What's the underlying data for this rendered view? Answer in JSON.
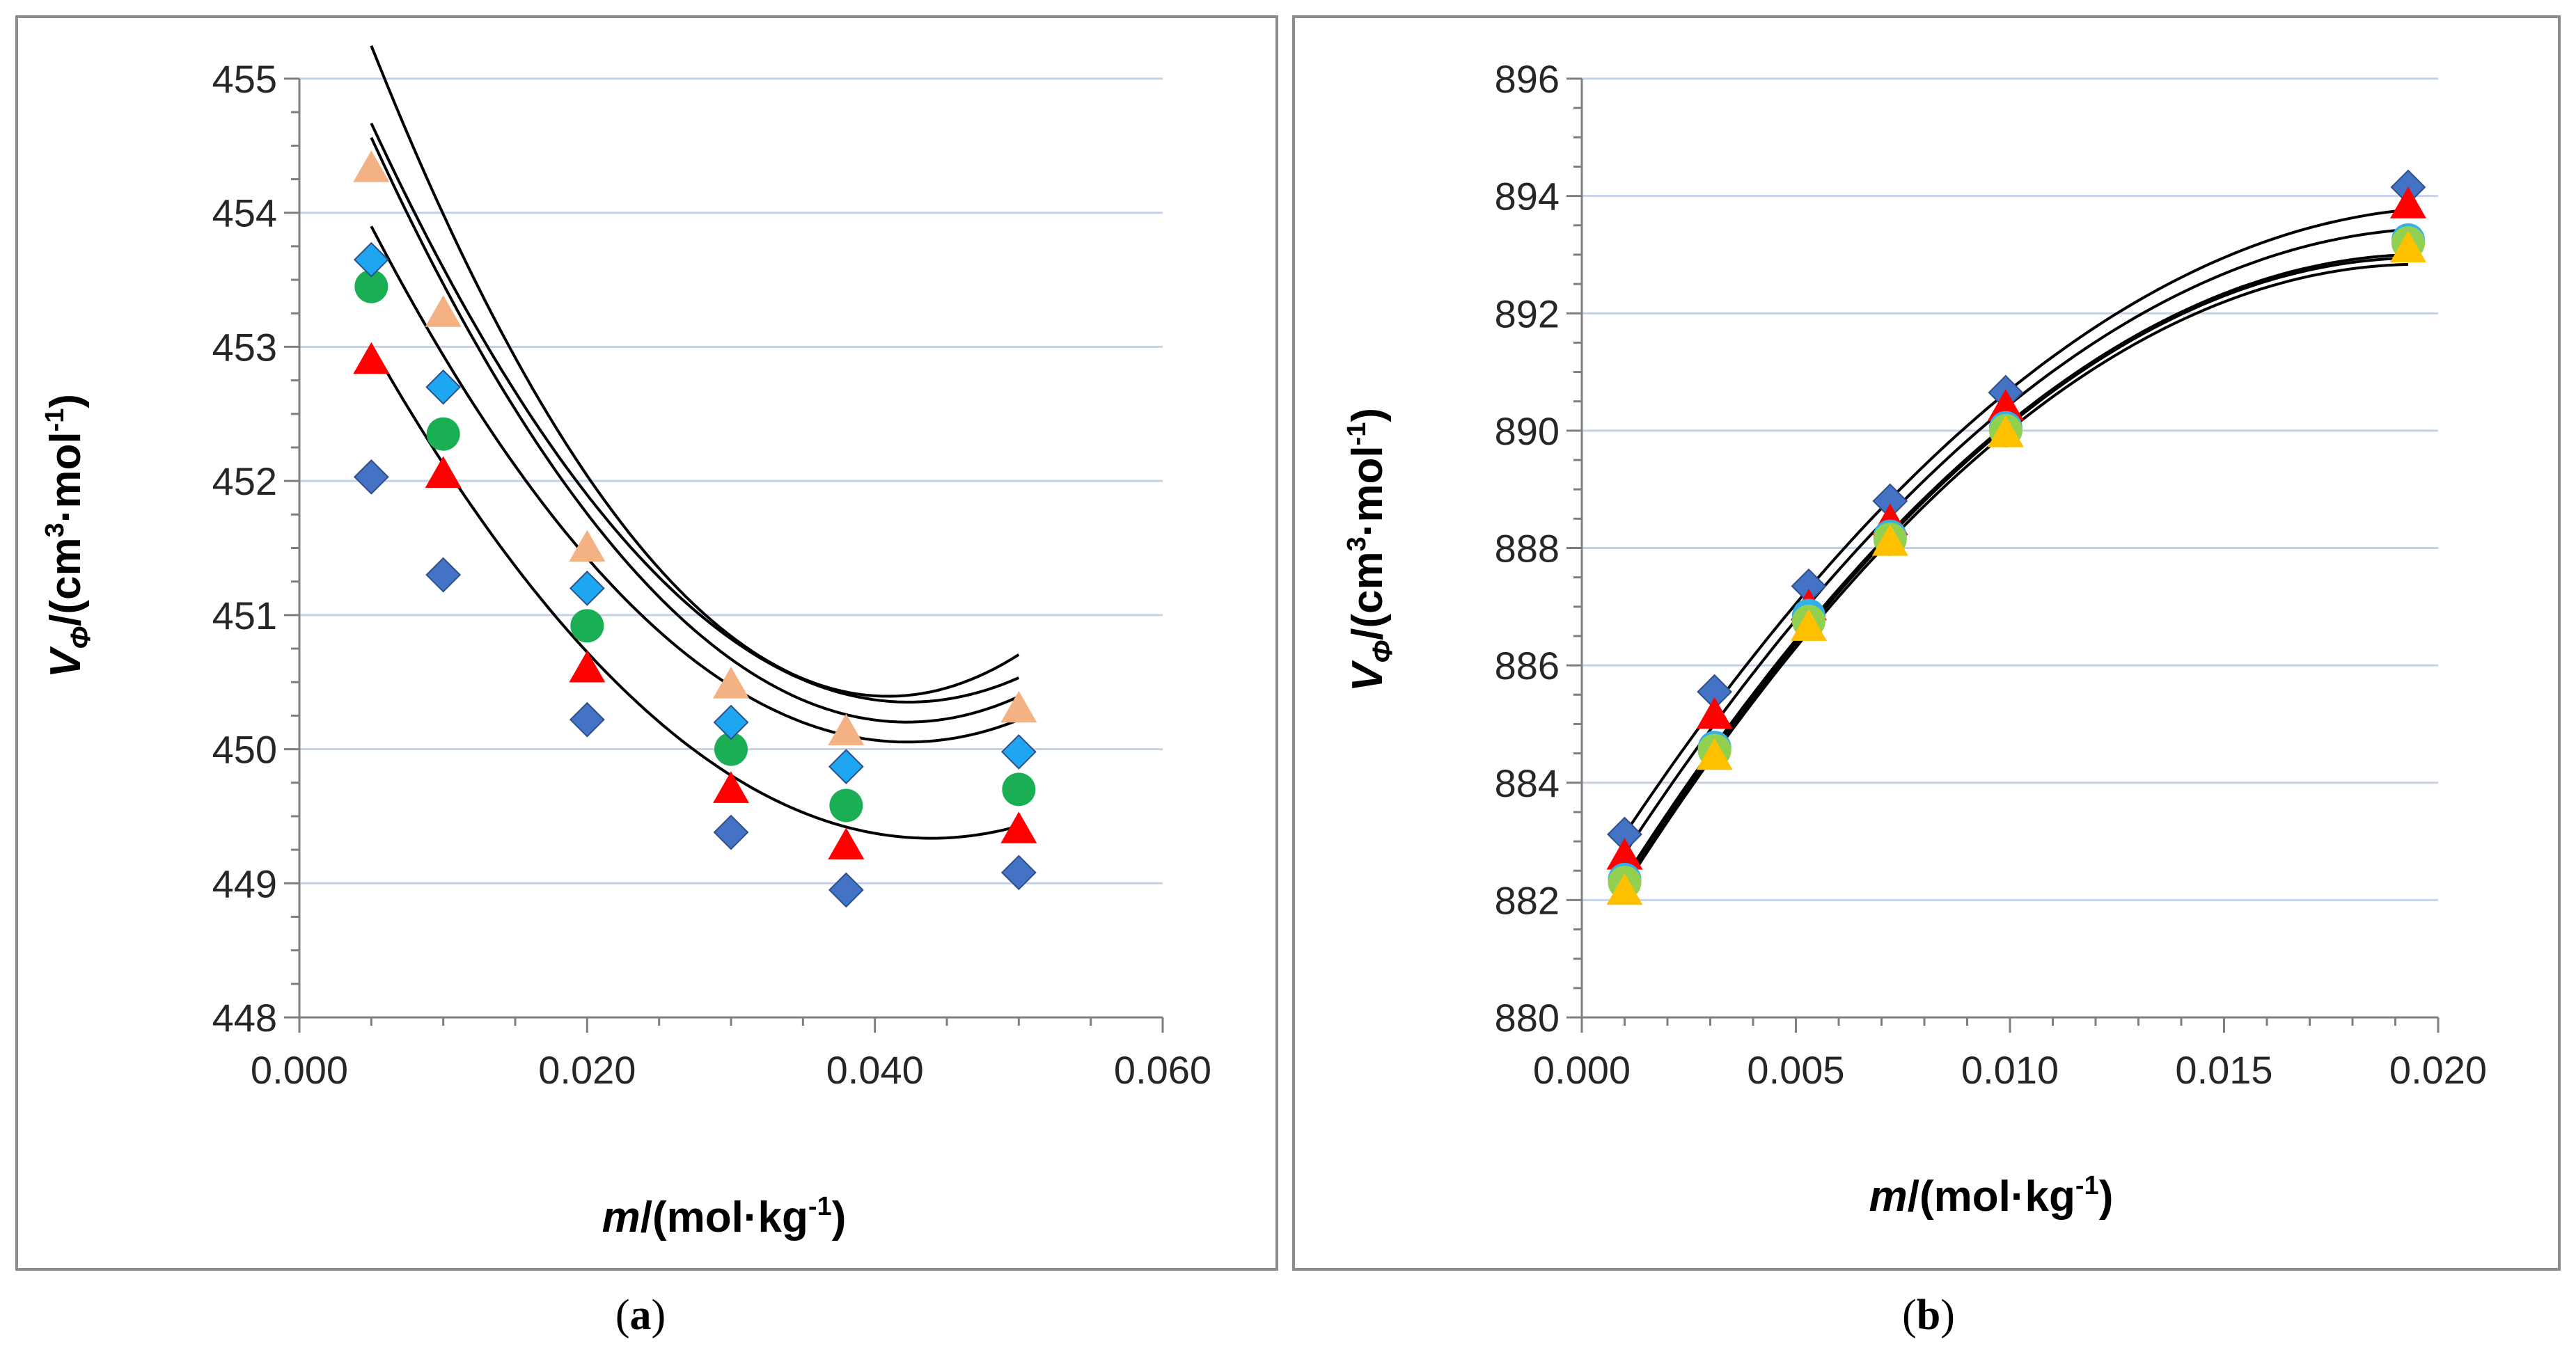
{
  "chart_data": [
    {
      "id": "a",
      "type": "scatter",
      "caption_open": "(",
      "caption_letter": "a",
      "caption_close": ")",
      "xlabel_italic": "m",
      "xlabel_rest": "/(mol·kg",
      "xlabel_sup": "-1",
      "xlabel_end": ")",
      "ylabel_italic": "V",
      "ylabel_sub": "Φ",
      "ylabel_rest": "/(cm",
      "ylabel_sup1": "3",
      "ylabel_mid": "·mol",
      "ylabel_sup2": "-1",
      "ylabel_end": ")",
      "xlim": [
        0,
        0.06
      ],
      "ylim": [
        448,
        455
      ],
      "xticks": [
        0.0,
        0.02,
        0.04,
        0.06
      ],
      "xtick_labels": [
        "0.000",
        "0.020",
        "0.040",
        "0.060"
      ],
      "x_minor_step": 0.005,
      "yticks": [
        448,
        449,
        450,
        451,
        452,
        453,
        454,
        455
      ],
      "ytick_labels": [
        "448",
        "449",
        "450",
        "451",
        "452",
        "453",
        "454",
        "455"
      ],
      "y_minor_step": 0.25,
      "series": [
        {
          "name": "series-1",
          "marker": "diamond",
          "color": "#4472C4",
          "x": [
            0.005,
            0.01,
            0.02,
            0.03,
            0.038,
            0.05
          ],
          "y": [
            452.03,
            451.3,
            450.22,
            449.38,
            448.95,
            449.08
          ],
          "fit": [
            454.02,
            -213.48,
            2432.3
          ],
          "fit_range": [
            0.005,
            0.05
          ]
        },
        {
          "name": "series-2",
          "marker": "triangle",
          "color": "#FF0000",
          "x": [
            0.005,
            0.01,
            0.02,
            0.03,
            0.038,
            0.05
          ],
          "y": [
            452.9,
            452.05,
            450.6,
            449.7,
            449.28,
            449.4
          ],
          "fit": [
            455.0,
            -234.08,
            2769.1
          ],
          "fit_range": [
            0.005,
            0.05
          ]
        },
        {
          "name": "series-3",
          "marker": "circle",
          "color": "#1AAF54",
          "x": [
            0.005,
            0.01,
            0.02,
            0.03,
            0.038,
            0.05
          ],
          "y": [
            453.45,
            452.35,
            450.92,
            450.0,
            449.58,
            449.7
          ],
          "fit": [
            455.81,
            -265.66,
            3146.1
          ],
          "fit_range": [
            0.005,
            0.05
          ]
        },
        {
          "name": "series-4",
          "marker": "diamond",
          "color": "#1EA7F0",
          "x": [
            0.005,
            0.01,
            0.02,
            0.03,
            0.038,
            0.05
          ],
          "y": [
            453.65,
            452.7,
            451.2,
            450.2,
            449.87,
            449.98
          ],
          "fit": [
            455.9,
            -262.1,
            3095.0
          ],
          "fit_range": [
            0.005,
            0.05
          ]
        },
        {
          "name": "series-5",
          "marker": "triangle",
          "color": "#F4B183",
          "x": [
            0.005,
            0.01,
            0.02,
            0.03,
            0.038,
            0.05
          ],
          "y": [
            454.33,
            453.25,
            451.5,
            450.48,
            450.13,
            450.3
          ],
          "fit": [
            456.69,
            -307.75,
            3761.0
          ],
          "fit_range": [
            0.005,
            0.05
          ]
        }
      ]
    },
    {
      "id": "b",
      "type": "scatter",
      "caption_open": "(",
      "caption_letter": "b",
      "caption_close": ")",
      "xlabel_italic": "m",
      "xlabel_rest": "/(mol·kg",
      "xlabel_sup": "-1",
      "xlabel_end": ")",
      "ylabel_italic": "V",
      "ylabel_sub": "Φ",
      "ylabel_rest": "/(cm",
      "ylabel_sup1": "3",
      "ylabel_mid": "·mol",
      "ylabel_sup2": "-1",
      "ylabel_end": ")",
      "xlim": [
        0,
        0.02
      ],
      "ylim": [
        880,
        896
      ],
      "xticks": [
        0.0,
        0.005,
        0.01,
        0.015,
        0.02
      ],
      "xtick_labels": [
        "0.000",
        "0.005",
        "0.010",
        "0.015",
        "0.020"
      ],
      "x_minor_step": 0.001,
      "yticks": [
        880,
        882,
        884,
        886,
        888,
        890,
        892,
        894,
        896
      ],
      "ytick_labels": [
        "880",
        "882",
        "884",
        "886",
        "888",
        "890",
        "892",
        "894",
        "896"
      ],
      "y_minor_step": 0.5,
      "series": [
        {
          "name": "series-1",
          "marker": "diamond",
          "color": "#4472C4",
          "x": [
            0.001,
            0.0031,
            0.0053,
            0.0072,
            0.0099,
            0.0193
          ],
          "y": [
            883.12,
            885.55,
            887.35,
            888.8,
            890.65,
            894.15
          ],
          "fit": [
            882.0,
            1150.0,
            -28000
          ],
          "fit_range": [
            0.001,
            0.0193
          ]
        },
        {
          "name": "series-2",
          "marker": "triangle",
          "color": "#FF0000",
          "x": [
            0.001,
            0.0031,
            0.0053,
            0.0072,
            0.0099,
            0.0193
          ],
          "y": [
            882.75,
            885.15,
            887.0,
            888.45,
            890.4,
            893.85
          ],
          "fit": [
            881.65,
            1170.0,
            -29000
          ],
          "fit_range": [
            0.001,
            0.0193
          ]
        },
        {
          "name": "series-3",
          "marker": "circle",
          "color": "#33B0E8",
          "x": [
            0.001,
            0.0031,
            0.0053,
            0.0072,
            0.0099,
            0.0193
          ],
          "y": [
            882.35,
            884.6,
            886.85,
            888.2,
            890.05,
            893.25
          ],
          "fit": [
            881.2,
            1200.0,
            -30500
          ],
          "fit_range": [
            0.001,
            0.0193
          ]
        },
        {
          "name": "series-4",
          "marker": "circle",
          "color": "#92D050",
          "x": [
            0.001,
            0.0031,
            0.0053,
            0.0072,
            0.0099,
            0.0193
          ],
          "y": [
            882.3,
            884.55,
            886.75,
            888.15,
            890.0,
            893.2
          ],
          "fit": [
            881.1,
            1210.0,
            -30900
          ],
          "fit_range": [
            0.001,
            0.0193
          ]
        },
        {
          "name": "series-5",
          "marker": "triangle",
          "color": "#FFC000",
          "x": [
            0.001,
            0.0031,
            0.0053,
            0.0072,
            0.0099,
            0.0193
          ],
          "y": [
            882.15,
            884.45,
            886.65,
            888.1,
            889.95,
            893.1
          ],
          "fit": [
            881.05,
            1205.0,
            -30800
          ],
          "fit_range": [
            0.001,
            0.0193
          ]
        }
      ]
    }
  ]
}
